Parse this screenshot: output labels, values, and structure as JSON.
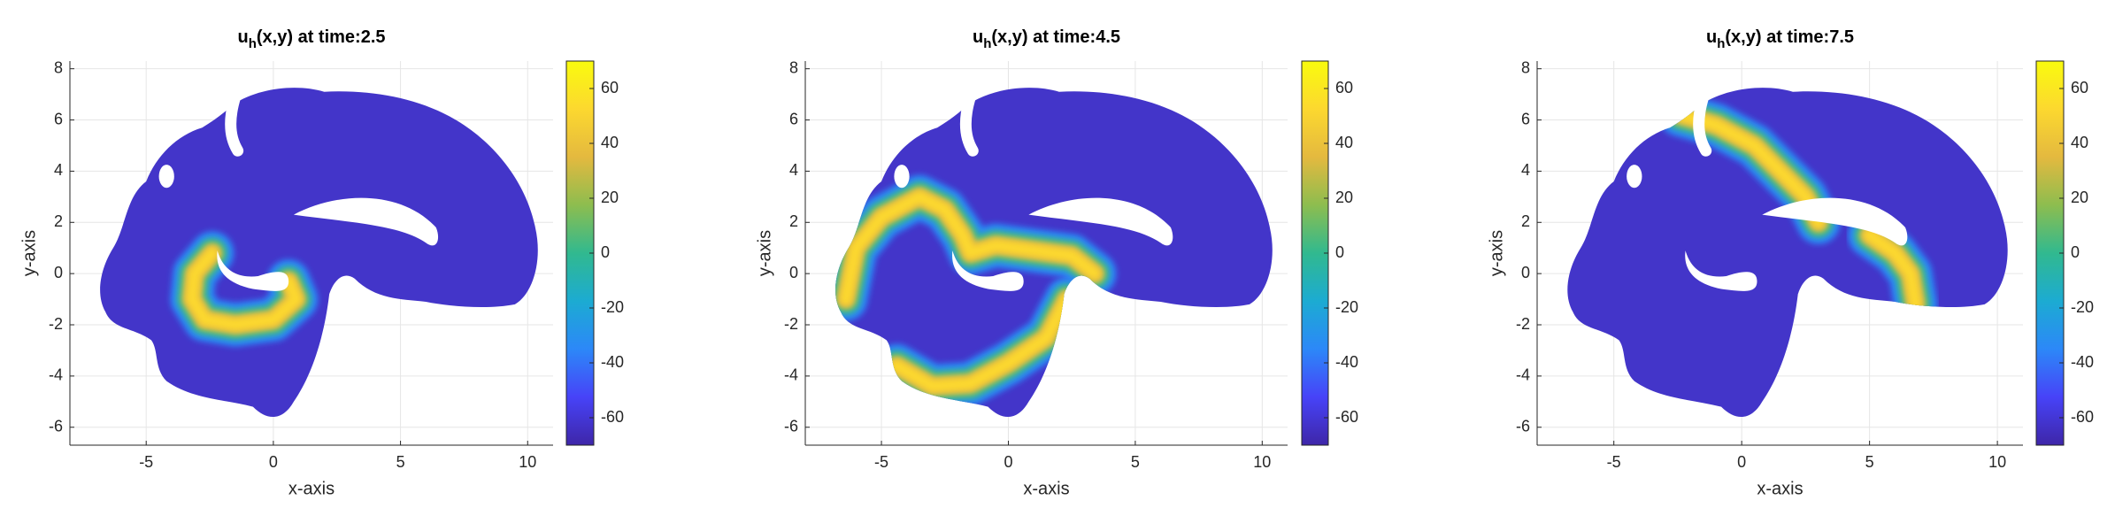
{
  "chart_data": [
    {
      "type": "surface",
      "title_parts": [
        "u",
        "h",
        "(x,y) at time:2.5"
      ],
      "x_label": "x-axis",
      "y_label": "y-axis",
      "xlim": [
        -8,
        11
      ],
      "ylim": [
        -6.7,
        8.3
      ],
      "xticks": [
        -5,
        0,
        5,
        10
      ],
      "yticks": [
        -6,
        -4,
        -2,
        0,
        2,
        4,
        6,
        8
      ],
      "grid": true,
      "clim": [
        -70,
        70
      ],
      "cticks": [
        -60,
        -40,
        -20,
        0,
        20,
        40,
        60
      ],
      "colormap": [
        "#3e26a8",
        "#4743f8",
        "#2c88f8",
        "#1cabd2",
        "#31b98f",
        "#8dbd4f",
        "#e4b93f",
        "#fcd82f",
        "#f9fb0e"
      ],
      "fronts": [
        {
          "x": [
            -2.4,
            -3.1,
            -3.2,
            -2.7,
            -1.5,
            0,
            0.9,
            0.6
          ],
          "y": [
            0.8,
            0,
            -1,
            -1.8,
            -2,
            -1.8,
            -1,
            -0.3
          ]
        }
      ]
    },
    {
      "type": "surface",
      "title_parts": [
        "u",
        "h",
        "(x,y) at time:4.5"
      ],
      "x_label": "x-axis",
      "y_label": "y-axis",
      "xlim": [
        -8,
        11
      ],
      "ylim": [
        -6.7,
        8.3
      ],
      "xticks": [
        -5,
        0,
        5,
        10
      ],
      "yticks": [
        -6,
        -4,
        -2,
        0,
        2,
        4,
        6,
        8
      ],
      "grid": true,
      "clim": [
        -70,
        70
      ],
      "cticks": [
        -60,
        -40,
        -20,
        0,
        20,
        40,
        60
      ],
      "colormap": [
        "#3e26a8",
        "#4743f8",
        "#2c88f8",
        "#1cabd2",
        "#31b98f",
        "#8dbd4f",
        "#e4b93f",
        "#fcd82f",
        "#f9fb0e"
      ],
      "fronts": [
        {
          "x": [
            -6.4,
            -6,
            -5,
            -3.5,
            -2.5,
            -1.8,
            -1.5,
            -0.5,
            1,
            2.5,
            3.4
          ],
          "y": [
            -1,
            1,
            2.2,
            3,
            2.5,
            1.5,
            0.8,
            1.1,
            0.9,
            0.7,
            0
          ]
        },
        {
          "x": [
            -4.4,
            -3,
            -1.5,
            0,
            1.5,
            2.3
          ],
          "y": [
            -3.6,
            -4.4,
            -4.3,
            -3.5,
            -2.5,
            -1
          ]
        }
      ]
    },
    {
      "type": "surface",
      "title_parts": [
        "u",
        "h",
        "(x,y) at time:7.5"
      ],
      "x_label": "x-axis",
      "y_label": "y-axis",
      "xlim": [
        -8,
        11
      ],
      "ylim": [
        -6.7,
        8.3
      ],
      "xticks": [
        -5,
        0,
        5,
        10
      ],
      "yticks": [
        -6,
        -4,
        -2,
        0,
        2,
        4,
        6,
        8
      ],
      "grid": true,
      "clim": [
        -70,
        70
      ],
      "cticks": [
        -60,
        -40,
        -20,
        0,
        20,
        40,
        60
      ],
      "colormap": [
        "#3e26a8",
        "#4743f8",
        "#2c88f8",
        "#1cabd2",
        "#31b98f",
        "#8dbd4f",
        "#e4b93f",
        "#fcd82f",
        "#f9fb0e"
      ],
      "fronts": [
        {
          "x": [
            -2.4,
            -1,
            0.5,
            1.5,
            2.5,
            3
          ],
          "y": [
            6.2,
            5.8,
            5,
            4,
            3,
            2
          ]
        },
        {
          "x": [
            5,
            6,
            6.6,
            6.8
          ],
          "y": [
            1.5,
            0.8,
            0,
            -1.2
          ]
        }
      ]
    }
  ]
}
